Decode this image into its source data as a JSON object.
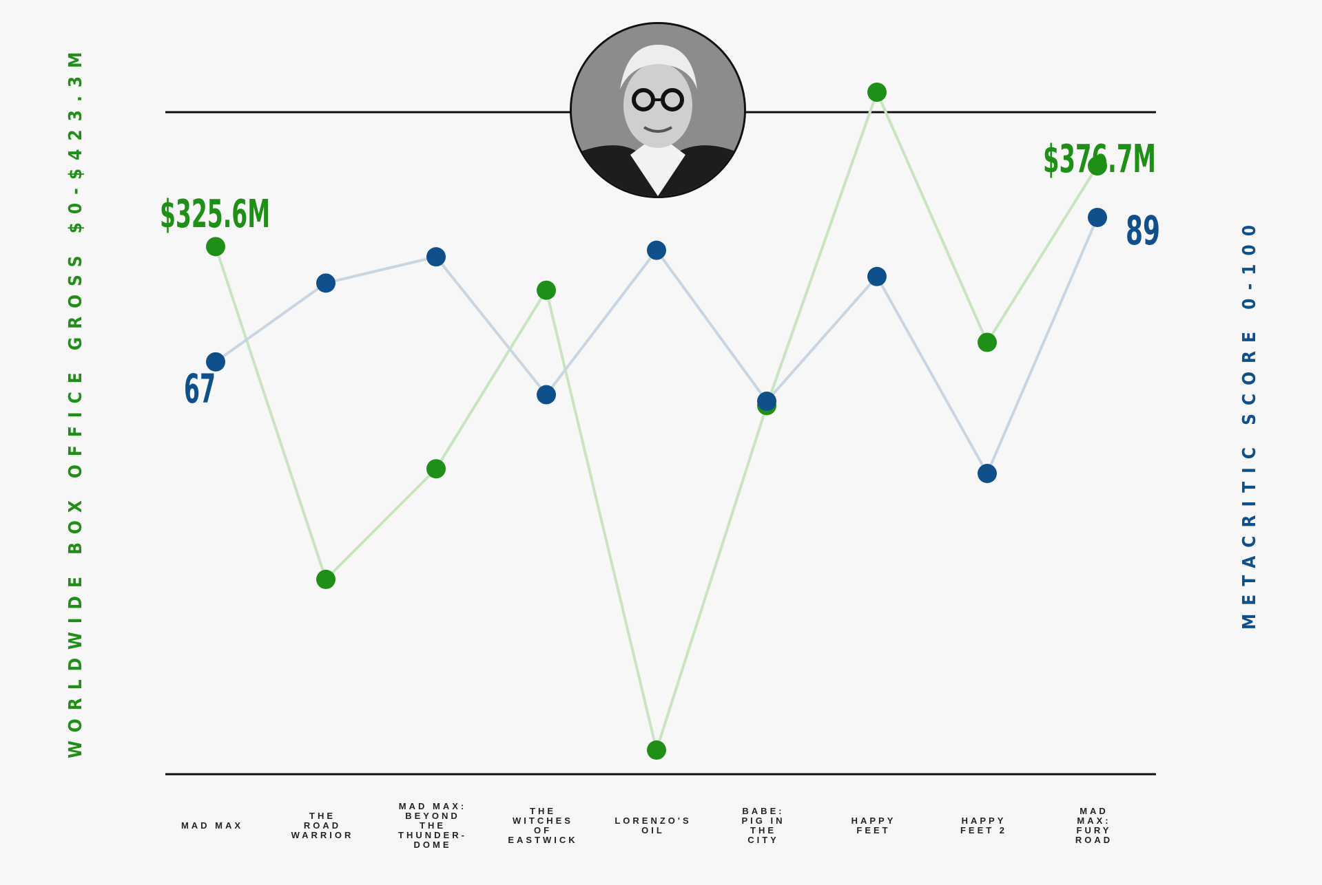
{
  "chart_data": {
    "type": "line",
    "categories": [
      [
        "MAD MAX"
      ],
      [
        "THE",
        "ROAD",
        "WARRIOR"
      ],
      [
        "MAD MAX:",
        "BEYOND",
        "THE",
        "THUNDER-",
        "DOME"
      ],
      [
        "THE",
        "WITCHES",
        "OF",
        "EASTWICK"
      ],
      [
        "LORENZO'S",
        "OIL"
      ],
      [
        "BABE:",
        "PIG IN",
        "THE",
        "CITY"
      ],
      [
        "HAPPY",
        "FEET"
      ],
      [
        "HAPPY",
        "FEET 2"
      ],
      [
        "MAD",
        "MAX:",
        "FURY",
        "ROAD"
      ]
    ],
    "series": [
      {
        "name": "Worldwide Box Office Gross",
        "color": "#1f8f17",
        "lineColor": "#c9e4c1",
        "axis": "left",
        "values": [
          325.6,
          115,
          185,
          298,
          7,
          225,
          423.3,
          265,
          376.7
        ]
      },
      {
        "name": "Metacritic Score",
        "color": "#0f4f8a",
        "lineColor": "#c9d6e2",
        "axis": "right",
        "values": [
          67,
          79,
          83,
          62,
          84,
          61,
          80,
          50,
          89
        ]
      }
    ],
    "y_left": {
      "label": "WORLDWIDE BOX OFFICE GROSS $0-$423.3M",
      "range": [
        0,
        423.3
      ]
    },
    "y_right": {
      "label": "METACRITIC SCORE 0-100",
      "range": [
        0,
        100
      ]
    },
    "annotations": {
      "gross_first": "$325.6M",
      "gross_last": "$376.7M",
      "score_first": "67",
      "score_last": "89"
    },
    "grid": false,
    "legend": "none"
  },
  "portrait": {
    "icon": "person-portrait-icon"
  }
}
